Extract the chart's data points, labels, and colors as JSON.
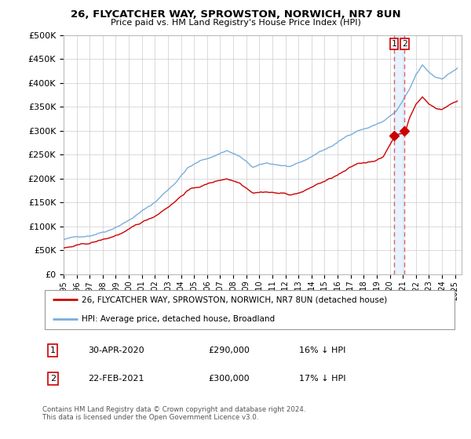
{
  "title": "26, FLYCATCHER WAY, SPROWSTON, NORWICH, NR7 8UN",
  "subtitle": "Price paid vs. HM Land Registry's House Price Index (HPI)",
  "legend_label_red": "26, FLYCATCHER WAY, SPROWSTON, NORWICH, NR7 8UN (detached house)",
  "legend_label_blue": "HPI: Average price, detached house, Broadland",
  "annotation1_num": "1",
  "annotation1_date": "30-APR-2020",
  "annotation1_price": "£290,000",
  "annotation1_hpi": "16% ↓ HPI",
  "annotation2_num": "2",
  "annotation2_date": "22-FEB-2021",
  "annotation2_price": "£300,000",
  "annotation2_hpi": "17% ↓ HPI",
  "footer": "Contains HM Land Registry data © Crown copyright and database right 2024.\nThis data is licensed under the Open Government Licence v3.0.",
  "ylim": [
    0,
    500000
  ],
  "yticks": [
    0,
    50000,
    100000,
    150000,
    200000,
    250000,
    300000,
    350000,
    400000,
    450000,
    500000
  ],
  "red_color": "#cc0000",
  "blue_color": "#7aaddb",
  "vline_color": "#e06060",
  "shade_color": "#ddeeff",
  "background_color": "#ffffff",
  "grid_color": "#cccccc",
  "sale1_x": 2020.33,
  "sale1_y": 290000,
  "sale2_x": 2021.13,
  "sale2_y": 300000,
  "xmin": 1995,
  "xmax": 2025.5
}
